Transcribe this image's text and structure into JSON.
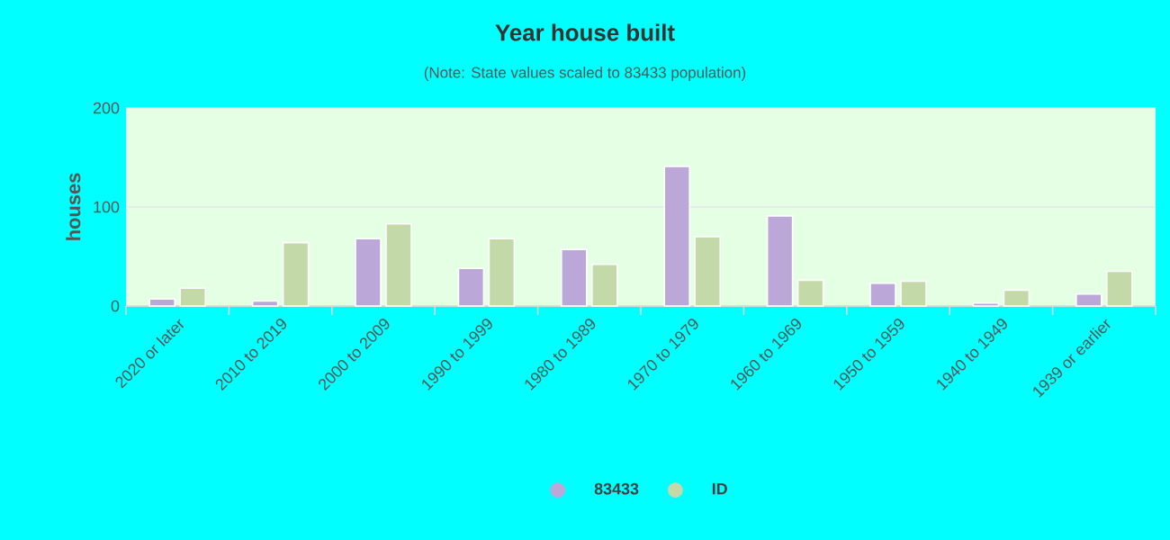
{
  "chart_data": {
    "type": "bar",
    "title": "Year house built",
    "subtitle": "(Note: State values scaled to 83433 population)",
    "ylabel": "houses",
    "categories": [
      "2020 or later",
      "2010 to 2019",
      "2000 to 2009",
      "1990 to 1999",
      "1980 to 1989",
      "1970 to 1979",
      "1960 to 1969",
      "1950 to 1959",
      "1940 to 1949",
      "1939 or earlier"
    ],
    "series": [
      {
        "name": "83433",
        "color": "#bca8d8",
        "values": [
          7,
          5,
          68,
          38,
          57,
          141,
          91,
          23,
          3,
          12
        ]
      },
      {
        "name": "ID",
        "color": "#c4d9a8",
        "values": [
          18,
          64,
          83,
          68,
          42,
          70,
          26,
          25,
          16,
          35
        ]
      }
    ],
    "ylim": [
      0,
      200
    ],
    "yticks": [
      0,
      100,
      200
    ],
    "grid": "y",
    "legend": "bottom"
  }
}
